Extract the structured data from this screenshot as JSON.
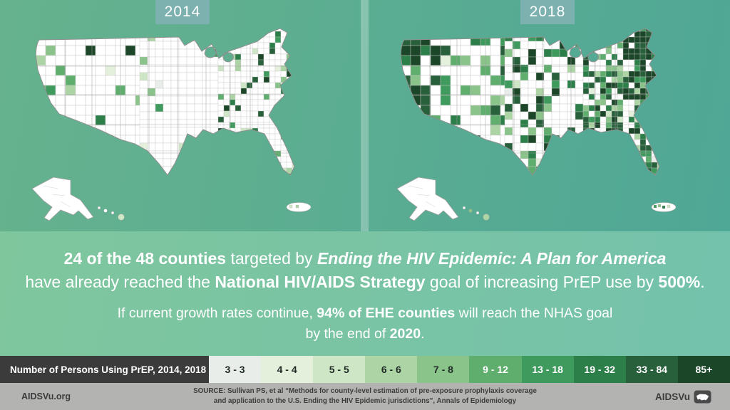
{
  "panels": [
    {
      "year": "2014"
    },
    {
      "year": "2018"
    }
  ],
  "headline": {
    "line1": [
      {
        "t": "24 of the 48 counties",
        "s": "b"
      },
      {
        "t": " targeted by ",
        "s": "r"
      },
      {
        "t": "Ending the HIV Epidemic: A Plan for America",
        "s": "bi"
      }
    ],
    "line2": [
      {
        "t": "have already reached the ",
        "s": "r"
      },
      {
        "t": "National HIV/AIDS Strategy",
        "s": "b"
      },
      {
        "t": " goal of increasing PrEP use by ",
        "s": "r"
      },
      {
        "t": "500%",
        "s": "b"
      },
      {
        "t": ".",
        "s": "r"
      }
    ]
  },
  "subheadline": {
    "line1": [
      {
        "t": "If current growth rates continue, ",
        "s": "r"
      },
      {
        "t": "94% of EHE counties",
        "s": "b"
      },
      {
        "t": " will reach the NHAS goal",
        "s": "r"
      }
    ],
    "line2": [
      {
        "t": "by the end of ",
        "s": "r"
      },
      {
        "t": "2020",
        "s": "b"
      },
      {
        "t": ".",
        "s": "r"
      }
    ]
  },
  "legend": {
    "title": "Number of Persons Using PrEP, 2014, 2018",
    "bins": [
      {
        "label": "3 - 3",
        "color": "#e9ede9",
        "text_color": "#1f2a24"
      },
      {
        "label": "4 - 4",
        "color": "#e4f0dc",
        "text_color": "#1f2a24"
      },
      {
        "label": "5 - 5",
        "color": "#cfe6c6",
        "text_color": "#1f2a24"
      },
      {
        "label": "6 - 6",
        "color": "#acd4a5",
        "text_color": "#1f2a24"
      },
      {
        "label": "7 - 8",
        "color": "#8ac48b",
        "text_color": "#1f2a24"
      },
      {
        "label": "9 - 12",
        "color": "#5fae6e",
        "text_color": "#ffffff"
      },
      {
        "label": "13 - 18",
        "color": "#3f9a5d",
        "text_color": "#ffffff"
      },
      {
        "label": "19 - 32",
        "color": "#2d7f4a",
        "text_color": "#ffffff"
      },
      {
        "label": "33 - 84",
        "color": "#29603c",
        "text_color": "#ffffff"
      },
      {
        "label": "85+",
        "color": "#1c4628",
        "text_color": "#ffffff"
      }
    ]
  },
  "footer": {
    "site": "AIDSVu.org",
    "source_line1": "SOURCE: Sullivan PS, et al “Methods for county-level estimation of pre-exposure prophylaxis coverage",
    "source_line2": "and application to the U.S. Ending the HIV Epidemic jurisdictions”, Annals of Epidemiology",
    "brand": "AIDSVu"
  },
  "colors": {
    "badge_bg": "#7db1af",
    "legend_label_bg": "#3b3b3b",
    "footer_bg": "#b3b4b2",
    "map_bg_left": "#66b28e",
    "map_bg_right": "#4fa795",
    "text_bg_left": "#7fc69d",
    "text_bg_right": "#74c2ac",
    "county_white": "#ffffff",
    "county_border": "#c7c7c7",
    "state_border": "#9e9e9e"
  }
}
